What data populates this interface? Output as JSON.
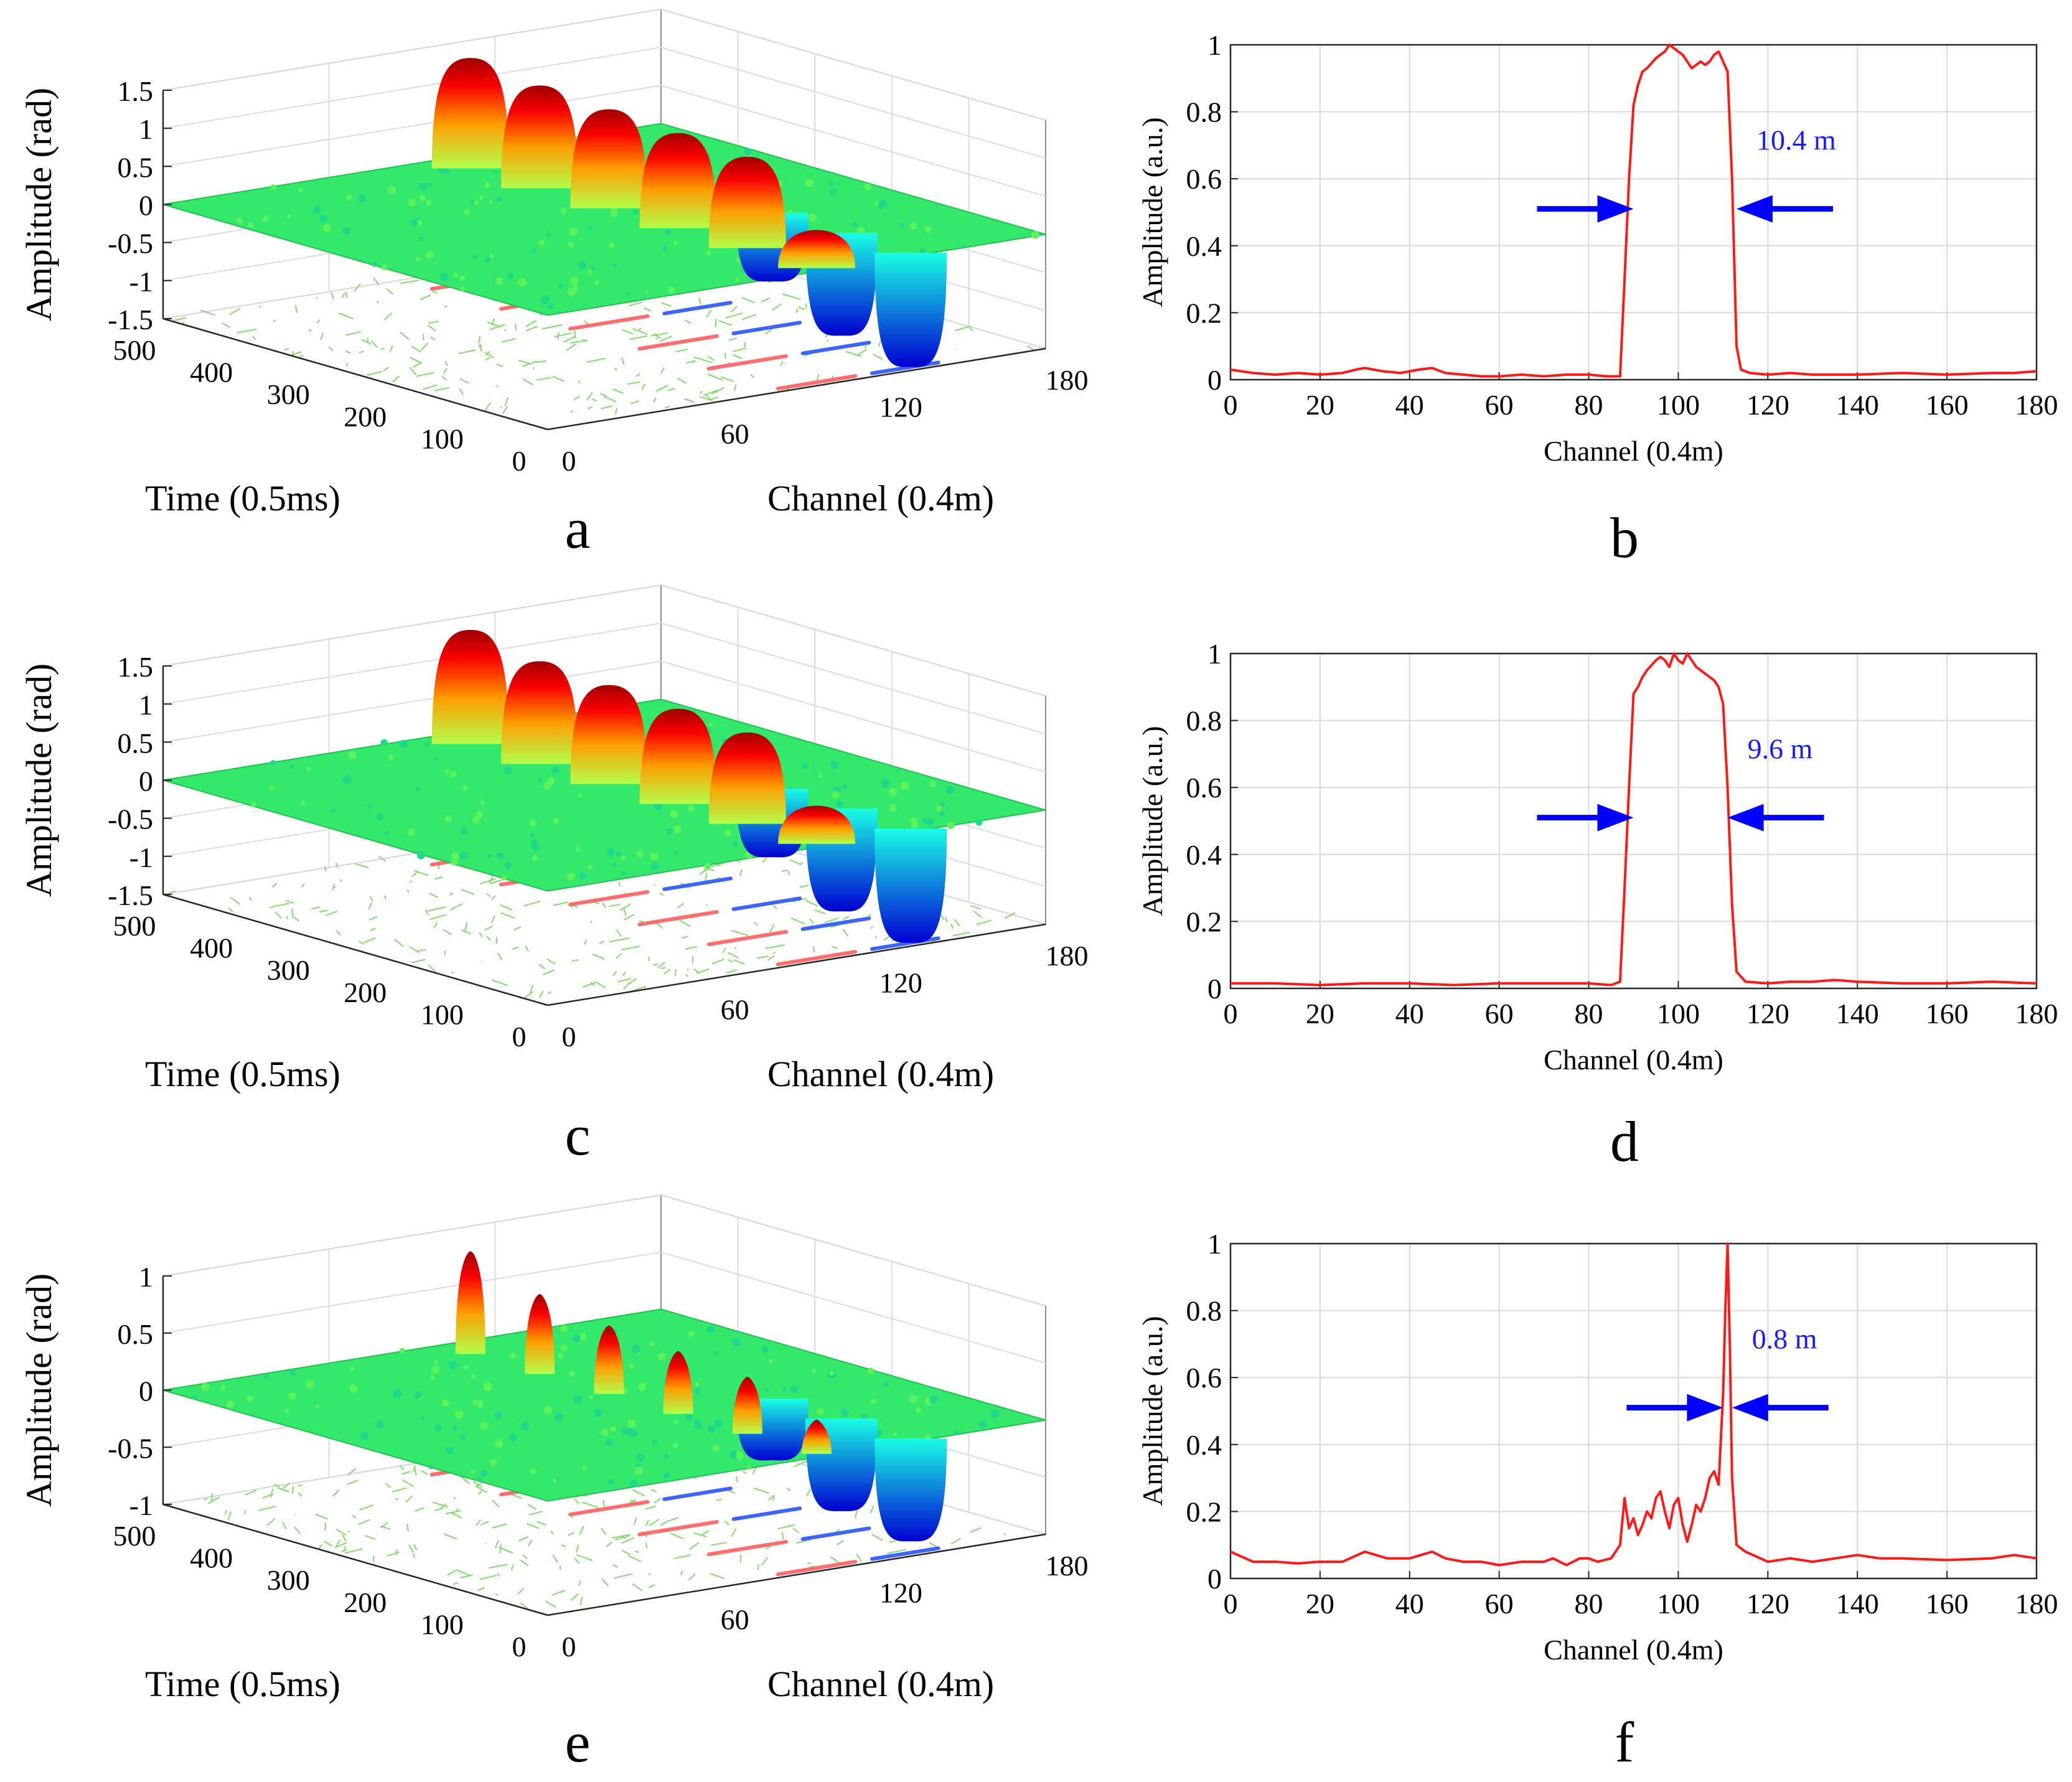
{
  "chart_data": [
    {
      "panel": "a",
      "type": "surface3d",
      "xlabel": "Time (0.5ms)",
      "ylabel": "Channel (0.4m)",
      "zlabel": "Amplitude (rad)",
      "xticks": [
        "500",
        "400",
        "300",
        "200",
        "100",
        "0"
      ],
      "yticks": [
        "0",
        "60",
        "120",
        "180"
      ],
      "zticks": [
        "1.5",
        "1",
        "0.5",
        "0",
        "-0.5",
        "-1",
        "-1.5"
      ],
      "zlim": [
        -1.5,
        1.5
      ],
      "peaks": [
        {
          "time": 460,
          "channel": 100,
          "amplitude": 1.45
        },
        {
          "time": 370,
          "channel": 100,
          "amplitude": 1.35
        },
        {
          "time": 280,
          "channel": 100,
          "amplitude": 1.3
        },
        {
          "time": 190,
          "channel": 100,
          "amplitude": 1.25
        },
        {
          "time": 100,
          "channel": 100,
          "amplitude": 1.2
        },
        {
          "time": 10,
          "channel": 100,
          "amplitude": 0.5
        }
      ],
      "troughs_amplitude": -1.5
    },
    {
      "panel": "b",
      "type": "line",
      "xlabel": "Channel (0.4m)",
      "ylabel": "Amplitude (a.u.)",
      "xlim": [
        0,
        180
      ],
      "ylim": [
        0,
        1
      ],
      "xticks": [
        "0",
        "20",
        "40",
        "60",
        "80",
        "100",
        "120",
        "140",
        "160",
        "180"
      ],
      "yticks": [
        "0",
        "0.2",
        "0.4",
        "0.6",
        "0.8",
        "1"
      ],
      "annotation": "10.4 m",
      "arrow_y": 0.51,
      "arrow_left_x": 90,
      "arrow_right_x": 113,
      "x": [
        0,
        5,
        10,
        15,
        20,
        25,
        28,
        30,
        34,
        38,
        42,
        45,
        48,
        52,
        56,
        60,
        65,
        70,
        75,
        80,
        84,
        87,
        88,
        89,
        90,
        91,
        92,
        93,
        95,
        97,
        98,
        99,
        100,
        101,
        102,
        103,
        104,
        105,
        106,
        107,
        108,
        109,
        110,
        111,
        112,
        113,
        114,
        116,
        120,
        125,
        130,
        140,
        150,
        160,
        170,
        175,
        180
      ],
      "y": [
        0.03,
        0.02,
        0.015,
        0.02,
        0.015,
        0.02,
        0.03,
        0.035,
        0.025,
        0.02,
        0.03,
        0.035,
        0.02,
        0.015,
        0.01,
        0.01,
        0.015,
        0.01,
        0.015,
        0.015,
        0.01,
        0.01,
        0.3,
        0.6,
        0.82,
        0.88,
        0.92,
        0.93,
        0.96,
        0.98,
        1.0,
        0.99,
        0.98,
        0.97,
        0.95,
        0.93,
        0.94,
        0.95,
        0.94,
        0.95,
        0.97,
        0.98,
        0.95,
        0.92,
        0.6,
        0.1,
        0.03,
        0.02,
        0.015,
        0.02,
        0.015,
        0.015,
        0.02,
        0.015,
        0.02,
        0.02,
        0.025
      ]
    },
    {
      "panel": "c",
      "type": "surface3d",
      "xlabel": "Time (0.5ms)",
      "ylabel": "Channel (0.4m)",
      "zlabel": "Amplitude (rad)",
      "xticks": [
        "500",
        "400",
        "300",
        "200",
        "100",
        "0"
      ],
      "yticks": [
        "0",
        "60",
        "120",
        "180"
      ],
      "zticks": [
        "1.5",
        "1",
        "0.5",
        "0",
        "-0.5",
        "-1",
        "-1.5"
      ],
      "zlim": [
        -1.5,
        1.5
      ],
      "peaks": [
        {
          "time": 460,
          "channel": 100,
          "amplitude": 1.5
        },
        {
          "time": 370,
          "channel": 100,
          "amplitude": 1.35
        },
        {
          "time": 280,
          "channel": 100,
          "amplitude": 1.3
        },
        {
          "time": 190,
          "channel": 100,
          "amplitude": 1.25
        },
        {
          "time": 100,
          "channel": 100,
          "amplitude": 1.2
        },
        {
          "time": 10,
          "channel": 100,
          "amplitude": 0.5
        }
      ],
      "troughs_amplitude": -1.5
    },
    {
      "panel": "d",
      "type": "line",
      "xlabel": "Channel (0.4m)",
      "ylabel": "Amplitude (a.u.)",
      "xlim": [
        0,
        180
      ],
      "ylim": [
        0,
        1
      ],
      "xticks": [
        "0",
        "20",
        "40",
        "60",
        "80",
        "100",
        "120",
        "140",
        "160",
        "180"
      ],
      "yticks": [
        "0",
        "0.2",
        "0.4",
        "0.6",
        "0.8",
        "1"
      ],
      "annotation": "9.6 m",
      "arrow_y": 0.51,
      "arrow_left_x": 90,
      "arrow_right_x": 111,
      "x": [
        0,
        10,
        20,
        30,
        40,
        50,
        60,
        70,
        80,
        85,
        87,
        88,
        89,
        90,
        91,
        92,
        93,
        95,
        96,
        97,
        98,
        99,
        100,
        101,
        102,
        103,
        104,
        105,
        106,
        107,
        108,
        109,
        110,
        111,
        112,
        113,
        115,
        120,
        125,
        130,
        135,
        140,
        150,
        160,
        170,
        180
      ],
      "y": [
        0.015,
        0.015,
        0.01,
        0.015,
        0.015,
        0.01,
        0.015,
        0.015,
        0.015,
        0.01,
        0.02,
        0.3,
        0.6,
        0.88,
        0.9,
        0.93,
        0.95,
        0.98,
        0.99,
        0.98,
        0.96,
        1.0,
        0.98,
        0.97,
        1.0,
        0.98,
        0.96,
        0.95,
        0.94,
        0.93,
        0.92,
        0.9,
        0.85,
        0.6,
        0.25,
        0.05,
        0.02,
        0.015,
        0.02,
        0.02,
        0.025,
        0.02,
        0.015,
        0.015,
        0.02,
        0.015
      ]
    },
    {
      "panel": "e",
      "type": "surface3d",
      "xlabel": "Time (0.5ms)",
      "ylabel": "Channel (0.4m)",
      "zlabel": "Amplitude (rad)",
      "xticks": [
        "500",
        "400",
        "300",
        "200",
        "100",
        "0"
      ],
      "yticks": [
        "0",
        "60",
        "120",
        "180"
      ],
      "zticks": [
        "1",
        "0.5",
        "0",
        "-0.5",
        "-1"
      ],
      "zlim": [
        -1,
        1
      ],
      "peaks": [
        {
          "time": 460,
          "channel": 100,
          "amplitude": 0.9
        },
        {
          "time": 370,
          "channel": 100,
          "amplitude": 0.7
        },
        {
          "time": 280,
          "channel": 100,
          "amplitude": 0.6
        },
        {
          "time": 190,
          "channel": 100,
          "amplitude": 0.55
        },
        {
          "time": 100,
          "channel": 100,
          "amplitude": 0.5
        },
        {
          "time": 10,
          "channel": 100,
          "amplitude": 0.3
        }
      ],
      "troughs_amplitude": -0.9
    },
    {
      "panel": "f",
      "type": "line",
      "xlabel": "Channel (0.4m)",
      "ylabel": "Amplitude (a.u.)",
      "xlim": [
        0,
        180
      ],
      "ylim": [
        0,
        1
      ],
      "xticks": [
        "0",
        "20",
        "40",
        "60",
        "80",
        "100",
        "120",
        "140",
        "160",
        "180"
      ],
      "yticks": [
        "0",
        "0.2",
        "0.4",
        "0.6",
        "0.8",
        "1"
      ],
      "annotation": "0.8 m",
      "arrow_y": 0.51,
      "arrow_left_x": 110,
      "arrow_right_x": 112,
      "x": [
        0,
        5,
        10,
        15,
        20,
        25,
        30,
        35,
        40,
        45,
        48,
        52,
        56,
        60,
        65,
        70,
        72,
        75,
        78,
        80,
        82,
        85,
        87,
        88,
        89,
        90,
        91,
        92,
        93,
        94,
        95,
        96,
        97,
        98,
        99,
        100,
        101,
        102,
        103,
        104,
        105,
        106,
        107,
        108,
        109,
        110,
        110.5,
        111,
        111.5,
        112,
        113,
        115,
        120,
        125,
        130,
        135,
        140,
        145,
        150,
        160,
        170,
        175,
        180
      ],
      "y": [
        0.08,
        0.05,
        0.05,
        0.045,
        0.05,
        0.05,
        0.08,
        0.06,
        0.06,
        0.08,
        0.06,
        0.05,
        0.05,
        0.04,
        0.05,
        0.05,
        0.06,
        0.04,
        0.06,
        0.06,
        0.05,
        0.06,
        0.1,
        0.24,
        0.15,
        0.18,
        0.13,
        0.16,
        0.2,
        0.18,
        0.24,
        0.26,
        0.2,
        0.15,
        0.22,
        0.24,
        0.16,
        0.11,
        0.16,
        0.22,
        0.2,
        0.24,
        0.3,
        0.32,
        0.28,
        0.55,
        0.8,
        1.0,
        0.7,
        0.3,
        0.1,
        0.08,
        0.05,
        0.06,
        0.05,
        0.06,
        0.07,
        0.06,
        0.06,
        0.055,
        0.06,
        0.07,
        0.06
      ]
    }
  ]
}
